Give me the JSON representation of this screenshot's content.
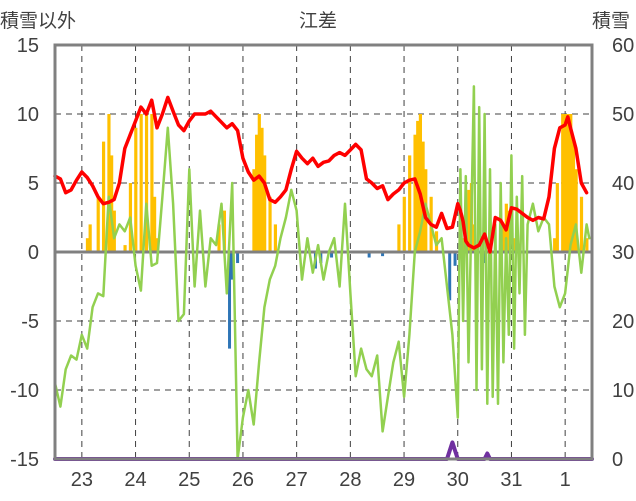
{
  "chart_data": {
    "type": "bar+line",
    "title": "江差",
    "left_axis_label": "積雪以外",
    "right_axis_label": "積雪",
    "left_ylim": [
      -15,
      15
    ],
    "left_yticks": [
      15,
      10,
      5,
      0,
      -5,
      -10,
      -15
    ],
    "right_ylim": [
      0,
      60
    ],
    "right_yticks": [
      60,
      50,
      40,
      30,
      20,
      10,
      0
    ],
    "x_categories": [
      "23",
      "24",
      "25",
      "26",
      "27",
      "28",
      "29",
      "30",
      "31",
      "1"
    ],
    "grid": true,
    "colors": {
      "snow_depth": "#ffc000",
      "red_line": "#ff0000",
      "green_line": "#92d050",
      "blue_bars": "#2e75b6",
      "purple_line": "#7030a0",
      "axis": "#808080",
      "zero_line": "#808080"
    },
    "snow_depth": [
      [
        23.1,
        32
      ],
      [
        23.15,
        34
      ],
      [
        23.3,
        38
      ],
      [
        23.4,
        46
      ],
      [
        23.5,
        50
      ],
      [
        23.55,
        44
      ],
      [
        23.6,
        36
      ],
      [
        23.8,
        31
      ],
      [
        23.9,
        40
      ],
      [
        24.0,
        48
      ],
      [
        24.1,
        50
      ],
      [
        24.2,
        50
      ],
      [
        24.3,
        50
      ],
      [
        24.35,
        38
      ],
      [
        24.4,
        32
      ],
      [
        25.55,
        34
      ],
      [
        25.65,
        36
      ],
      [
        25.8,
        30
      ],
      [
        26.2,
        42
      ],
      [
        26.25,
        47
      ],
      [
        26.3,
        50
      ],
      [
        26.35,
        48
      ],
      [
        26.4,
        44
      ],
      [
        26.5,
        38
      ],
      [
        26.6,
        34
      ],
      [
        28.9,
        34
      ],
      [
        29.0,
        38
      ],
      [
        29.1,
        44
      ],
      [
        29.2,
        47
      ],
      [
        29.25,
        49
      ],
      [
        29.3,
        50
      ],
      [
        29.35,
        46
      ],
      [
        29.4,
        42
      ],
      [
        29.5,
        38
      ],
      [
        29.6,
        33
      ],
      [
        30.1,
        32
      ],
      [
        30.15,
        36
      ],
      [
        30.2,
        39
      ],
      [
        30.25,
        40
      ],
      [
        30.3,
        34
      ],
      [
        30.85,
        34
      ],
      [
        30.9,
        37
      ],
      [
        30.95,
        36
      ],
      [
        31.05,
        32
      ],
      [
        31.8,
        32
      ],
      [
        31.85,
        40
      ],
      [
        31.95,
        50
      ],
      [
        32.0,
        50
      ],
      [
        32.05,
        50
      ],
      [
        32.1,
        50
      ],
      [
        32.15,
        46
      ],
      [
        32.2,
        42
      ],
      [
        32.3,
        38
      ],
      [
        32.4,
        32
      ]
    ],
    "red_series": [
      [
        22.5,
        5.5
      ],
      [
        22.6,
        5.3
      ],
      [
        22.7,
        4.3
      ],
      [
        22.8,
        4.5
      ],
      [
        22.9,
        5.2
      ],
      [
        23.0,
        5.8
      ],
      [
        23.1,
        5.4
      ],
      [
        23.2,
        4.8
      ],
      [
        23.3,
        4.0
      ],
      [
        23.4,
        3.5
      ],
      [
        23.5,
        3.6
      ],
      [
        23.6,
        3.8
      ],
      [
        23.7,
        5.0
      ],
      [
        23.8,
        7.5
      ],
      [
        23.9,
        8.5
      ],
      [
        24.0,
        9.5
      ],
      [
        24.1,
        10.5
      ],
      [
        24.2,
        10.0
      ],
      [
        24.3,
        11.0
      ],
      [
        24.4,
        9.0
      ],
      [
        24.5,
        10.0
      ],
      [
        24.6,
        11.2
      ],
      [
        24.7,
        10.2
      ],
      [
        24.8,
        9.2
      ],
      [
        24.9,
        8.8
      ],
      [
        25.0,
        9.5
      ],
      [
        25.1,
        10.0
      ],
      [
        25.2,
        10.0
      ],
      [
        25.3,
        10.0
      ],
      [
        25.4,
        10.2
      ],
      [
        25.5,
        9.8
      ],
      [
        25.6,
        9.4
      ],
      [
        25.7,
        9.0
      ],
      [
        25.8,
        9.3
      ],
      [
        25.9,
        8.8
      ],
      [
        26.0,
        6.8
      ],
      [
        26.1,
        5.8
      ],
      [
        26.2,
        5.2
      ],
      [
        26.3,
        5.5
      ],
      [
        26.4,
        5.0
      ],
      [
        26.5,
        3.8
      ],
      [
        26.6,
        3.6
      ],
      [
        26.7,
        4.0
      ],
      [
        26.8,
        4.5
      ],
      [
        26.9,
        6.0
      ],
      [
        27.0,
        7.3
      ],
      [
        27.1,
        6.8
      ],
      [
        27.2,
        6.4
      ],
      [
        27.3,
        6.8
      ],
      [
        27.4,
        6.2
      ],
      [
        27.5,
        6.5
      ],
      [
        27.6,
        6.6
      ],
      [
        27.7,
        7.0
      ],
      [
        27.8,
        7.2
      ],
      [
        27.9,
        7.0
      ],
      [
        28.0,
        7.4
      ],
      [
        28.1,
        7.8
      ],
      [
        28.2,
        7.4
      ],
      [
        28.3,
        5.3
      ],
      [
        28.4,
        5.0
      ],
      [
        28.5,
        4.6
      ],
      [
        28.6,
        4.8
      ],
      [
        28.7,
        3.8
      ],
      [
        28.8,
        4.2
      ],
      [
        28.9,
        4.5
      ],
      [
        29.0,
        5.0
      ],
      [
        29.1,
        5.2
      ],
      [
        29.2,
        5.3
      ],
      [
        29.3,
        4.2
      ],
      [
        29.4,
        2.5
      ],
      [
        29.5,
        2.0
      ],
      [
        29.6,
        1.8
      ],
      [
        29.7,
        2.8
      ],
      [
        29.8,
        1.7
      ],
      [
        29.9,
        1.8
      ],
      [
        30.0,
        3.5
      ],
      [
        30.05,
        3.0
      ],
      [
        30.1,
        2.2
      ],
      [
        30.15,
        0.8
      ],
      [
        30.2,
        0.5
      ],
      [
        30.3,
        0.3
      ],
      [
        30.4,
        0.5
      ],
      [
        30.5,
        1.3
      ],
      [
        30.6,
        0.0
      ],
      [
        30.7,
        2.5
      ],
      [
        30.8,
        2.3
      ],
      [
        30.9,
        1.6
      ],
      [
        31.0,
        3.2
      ],
      [
        31.1,
        3.1
      ],
      [
        31.2,
        2.8
      ],
      [
        31.3,
        2.5
      ],
      [
        31.4,
        2.3
      ],
      [
        31.5,
        2.5
      ],
      [
        31.6,
        2.4
      ],
      [
        31.7,
        4.0
      ],
      [
        31.8,
        7.5
      ],
      [
        31.9,
        9.0
      ],
      [
        32.0,
        9.2
      ],
      [
        32.05,
        9.8
      ],
      [
        32.1,
        9.0
      ],
      [
        32.2,
        7.5
      ],
      [
        32.3,
        5.0
      ],
      [
        32.4,
        4.3
      ]
    ],
    "green_series": [
      [
        22.5,
        -9.5
      ],
      [
        22.6,
        -11.2
      ],
      [
        22.7,
        -8.5
      ],
      [
        22.8,
        -7.5
      ],
      [
        22.9,
        -7.8
      ],
      [
        23.0,
        -6.0
      ],
      [
        23.1,
        -7.0
      ],
      [
        23.2,
        -4.0
      ],
      [
        23.3,
        -3.0
      ],
      [
        23.4,
        -3.2
      ],
      [
        23.5,
        4.0
      ],
      [
        23.6,
        1.0
      ],
      [
        23.7,
        2.0
      ],
      [
        23.8,
        1.5
      ],
      [
        23.9,
        2.5
      ],
      [
        24.0,
        -1.0
      ],
      [
        24.1,
        -2.8
      ],
      [
        24.2,
        3.5
      ],
      [
        24.3,
        -1.0
      ],
      [
        24.4,
        -0.8
      ],
      [
        24.5,
        4.0
      ],
      [
        24.6,
        9.0
      ],
      [
        24.7,
        3.5
      ],
      [
        24.8,
        -5.0
      ],
      [
        24.9,
        -4.5
      ],
      [
        25.0,
        6.0
      ],
      [
        25.1,
        -2.5
      ],
      [
        25.2,
        3.0
      ],
      [
        25.3,
        -2.5
      ],
      [
        25.4,
        1.0
      ],
      [
        25.5,
        0.5
      ],
      [
        25.6,
        3.5
      ],
      [
        25.7,
        -3.0
      ],
      [
        25.8,
        5.0
      ],
      [
        25.9,
        -15.0
      ],
      [
        26.0,
        -12.0
      ],
      [
        26.1,
        -10.0
      ],
      [
        26.2,
        -12.5
      ],
      [
        26.3,
        -8.0
      ],
      [
        26.4,
        -4.0
      ],
      [
        26.5,
        -2.0
      ],
      [
        26.6,
        -1.0
      ],
      [
        26.7,
        1.0
      ],
      [
        26.8,
        2.5
      ],
      [
        26.9,
        4.5
      ],
      [
        27.0,
        3.0
      ],
      [
        27.1,
        -2.0
      ],
      [
        27.2,
        1.0
      ],
      [
        27.3,
        -1.5
      ],
      [
        27.4,
        0.5
      ],
      [
        27.5,
        -2.0
      ],
      [
        27.6,
        0.0
      ],
      [
        27.7,
        1.0
      ],
      [
        27.8,
        -2.5
      ],
      [
        27.9,
        3.5
      ],
      [
        28.0,
        -3.0
      ],
      [
        28.1,
        -9.0
      ],
      [
        28.2,
        -7.0
      ],
      [
        28.3,
        -8.5
      ],
      [
        28.4,
        -9.0
      ],
      [
        28.5,
        -7.5
      ],
      [
        28.6,
        -13.0
      ],
      [
        28.7,
        -10.5
      ],
      [
        28.8,
        -8.0
      ],
      [
        28.9,
        -6.5
      ],
      [
        29.0,
        -10.5
      ],
      [
        29.1,
        -6.0
      ],
      [
        29.2,
        0.0
      ],
      [
        29.3,
        1.5
      ],
      [
        29.4,
        3.5
      ],
      [
        29.5,
        2.0
      ],
      [
        29.6,
        0.5
      ],
      [
        29.7,
        1.0
      ],
      [
        29.8,
        -2.5
      ],
      [
        29.9,
        -6.0
      ],
      [
        30.0,
        -12.0
      ],
      [
        30.05,
        6.0
      ],
      [
        30.1,
        -5.0
      ],
      [
        30.15,
        5.5
      ],
      [
        30.2,
        -8.0
      ],
      [
        30.3,
        12.0
      ],
      [
        30.35,
        -10.0
      ],
      [
        30.4,
        10.5
      ],
      [
        30.45,
        -8.5
      ],
      [
        30.5,
        10.0
      ],
      [
        30.55,
        -11.0
      ],
      [
        30.6,
        6.0
      ],
      [
        30.65,
        -10.5
      ],
      [
        30.7,
        2.0
      ],
      [
        30.75,
        -11.0
      ],
      [
        30.8,
        5.0
      ],
      [
        30.85,
        -8.0
      ],
      [
        30.9,
        1.0
      ],
      [
        30.95,
        -6.0
      ],
      [
        31.0,
        7.0
      ],
      [
        31.05,
        -7.0
      ],
      [
        31.1,
        4.0
      ],
      [
        31.15,
        -3.0
      ],
      [
        31.2,
        5.5
      ],
      [
        31.25,
        -6.0
      ],
      [
        31.3,
        2.0
      ],
      [
        31.4,
        3.5
      ],
      [
        31.5,
        1.5
      ],
      [
        31.6,
        2.5
      ],
      [
        31.7,
        2.0
      ],
      [
        31.8,
        -2.5
      ],
      [
        31.9,
        -4.0
      ],
      [
        32.0,
        -3.0
      ],
      [
        32.1,
        0.5
      ],
      [
        32.2,
        2.0
      ],
      [
        32.3,
        -1.5
      ],
      [
        32.4,
        2.0
      ],
      [
        32.45,
        1.0
      ]
    ],
    "blue_bars": [
      [
        25.75,
        -7.0
      ],
      [
        25.8,
        -2.0
      ],
      [
        25.9,
        -0.8
      ],
      [
        27.35,
        -1.2
      ],
      [
        27.45,
        -0.8
      ],
      [
        27.65,
        -0.4
      ],
      [
        28.35,
        -0.4
      ],
      [
        28.6,
        -0.3
      ],
      [
        29.85,
        -3.5
      ],
      [
        29.95,
        -1.0
      ],
      [
        30.5,
        -0.8
      ]
    ],
    "purple_series": [
      [
        22.5,
        -15.0
      ],
      [
        29.8,
        -15.0
      ],
      [
        29.9,
        -13.8
      ],
      [
        29.95,
        -14.4
      ],
      [
        30.0,
        -15.0
      ],
      [
        30.5,
        -15.0
      ],
      [
        30.55,
        -14.6
      ],
      [
        30.6,
        -15.0
      ],
      [
        32.5,
        -15.0
      ]
    ]
  }
}
